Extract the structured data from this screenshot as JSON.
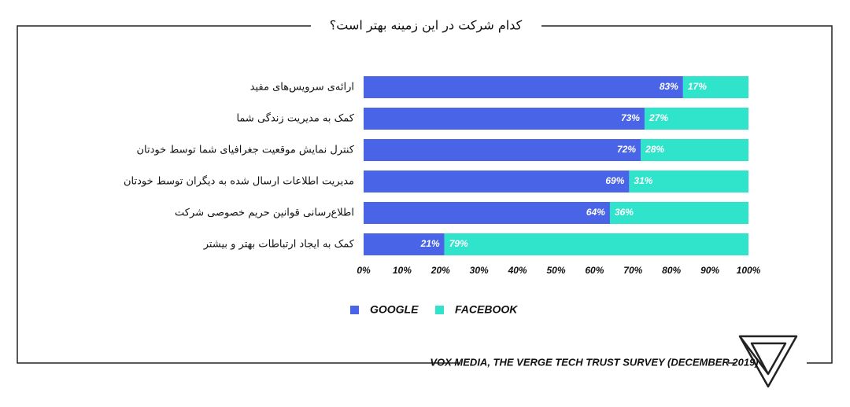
{
  "chart_data": {
    "type": "stacked-bar-horizontal",
    "title": "کدام شرکت در این زمینه بهتر است؟",
    "source": "VOX MEDIA, THE VERGE TECH TRUST SURVEY (DECEMBER 2019)",
    "categories": [
      "ارائه‌ی سرویس‌های مفید",
      "کمک به مدیریت زندگی شما",
      "کنترل نمایش موقعیت جغرافیای شما توسط خودتان",
      "مدیریت اطلاعات ارسال شده به دیگران توسط خودتان",
      "اطلاع‌رسانی قوانین حریم خصوصی شرکت",
      "کمک به ایجاد ارتباطات بهتر و بیشتر"
    ],
    "series": [
      {
        "name": "GOOGLE",
        "color": "#4a64e8",
        "values": [
          83,
          73,
          72,
          69,
          64,
          21
        ],
        "value_labels": [
          "83%",
          "73%",
          "72%",
          "69%",
          "64%",
          "21%"
        ]
      },
      {
        "name": "FACEBOOK",
        "color": "#30e3cb",
        "values": [
          17,
          27,
          28,
          31,
          36,
          79
        ],
        "value_labels": [
          "17%",
          "27%",
          "28%",
          "31%",
          "36%",
          "79%"
        ]
      }
    ],
    "xlim": [
      0,
      100
    ],
    "xticks": [
      {
        "value": 0,
        "label": "0%"
      },
      {
        "value": 10,
        "label": "10%"
      },
      {
        "value": 20,
        "label": "20%"
      },
      {
        "value": 30,
        "label": "30%"
      },
      {
        "value": 40,
        "label": "40%"
      },
      {
        "value": 50,
        "label": "50%"
      },
      {
        "value": 60,
        "label": "60%"
      },
      {
        "value": 70,
        "label": "70%"
      },
      {
        "value": 80,
        "label": "80%"
      },
      {
        "value": 90,
        "label": "90%"
      },
      {
        "value": 100,
        "label": "100%"
      }
    ]
  }
}
